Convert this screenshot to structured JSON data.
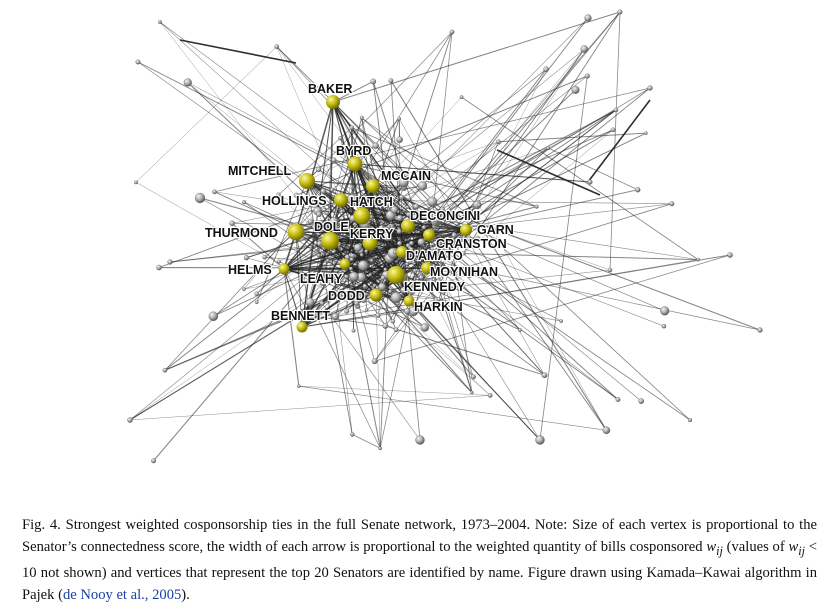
{
  "figure": {
    "senators": [
      "BAKER",
      "BYRD",
      "MITCHELL",
      "MCCAIN",
      "HOLLINGS",
      "HATCH",
      "DECONCINI",
      "THURMOND",
      "DOLE",
      "KERRY",
      "GARN",
      "CRANSTON",
      "D'AMATO",
      "HELMS",
      "LEAHY",
      "MOYNIHAN",
      "KENNEDY",
      "DODD",
      "HARKIN",
      "BENNETT"
    ]
  },
  "caption": {
    "fig_label": "Fig. 4.",
    "text_1": "Strongest weighted cosponsorship ties in the full Senate network, 1973–2004. Note: Size of each vertex is proportional to the Senator’s connectedness score, the width of each arrow is proportional to the weighted quantity of bills cosponsored",
    "w_ij": "w",
    "sub_ij": "ij",
    "text_2": "(values of",
    "text_3": "< 10 not shown) and vertices that represent the top 20 Senators are identified by name. Figure drawn using Kamada–Kawai algorithm in Pajek (",
    "reference": "de Nooy et al., 2005",
    "text_4": ")."
  }
}
